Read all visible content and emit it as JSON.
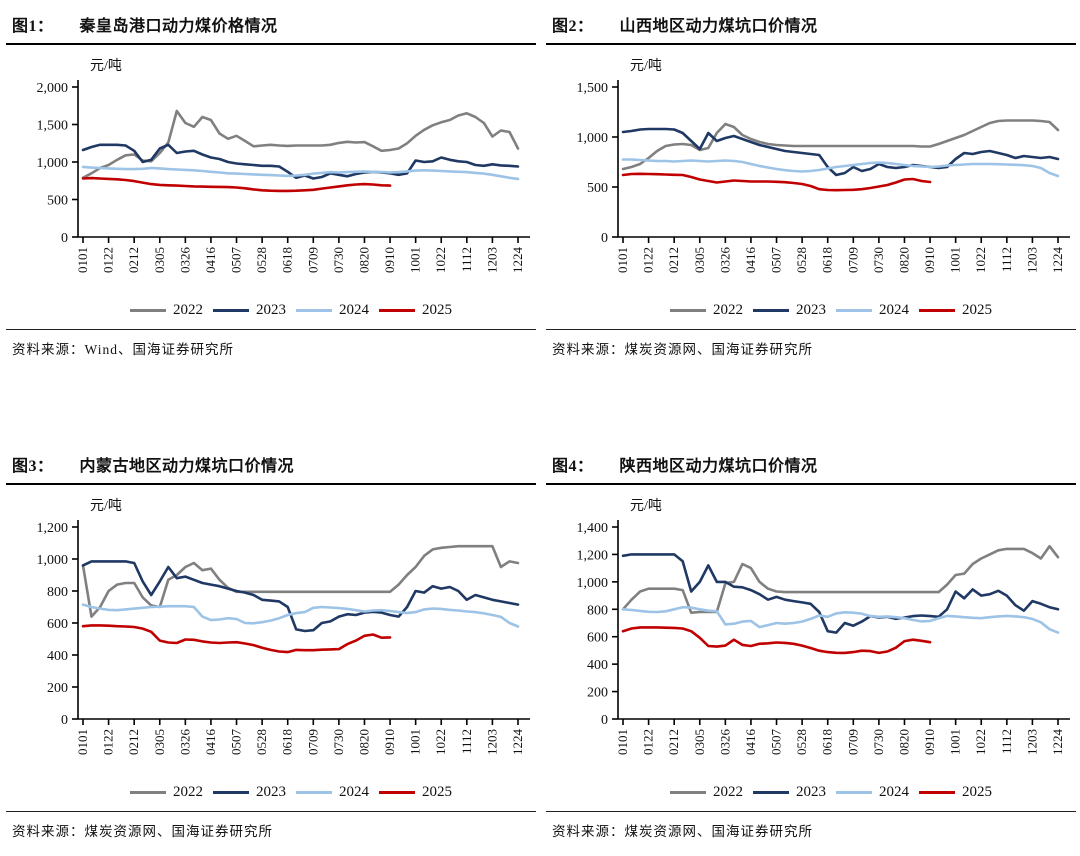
{
  "page": {
    "background": "#ffffff"
  },
  "chart_data": [
    {
      "id": "fig1",
      "type": "line",
      "title_prefix": "图1：",
      "title": "秦皇岛港口动力煤价格情况",
      "unit": "元/吨",
      "source": "资料来源：Wind、国海证券研究所",
      "legend_position": "bottom",
      "grid": false,
      "ylim": [
        0,
        2000
      ],
      "ystep": 500,
      "x_tick_labels": [
        "0101",
        "0122",
        "0212",
        "0305",
        "0326",
        "0416",
        "0507",
        "0528",
        "0618",
        "0709",
        "0730",
        "0820",
        "0910",
        "1001",
        "1022",
        "1112",
        "1203",
        "1224"
      ],
      "series": [
        {
          "name": "2022",
          "color": "#808080",
          "values": [
            790,
            850,
            920,
            960,
            1030,
            1090,
            1100,
            1020,
            1010,
            1120,
            1260,
            1680,
            1520,
            1470,
            1600,
            1560,
            1380,
            1310,
            1350,
            1280,
            1210,
            1220,
            1230,
            1220,
            1215,
            1220,
            1220,
            1220,
            1220,
            1230,
            1255,
            1270,
            1260,
            1265,
            1210,
            1150,
            1160,
            1180,
            1250,
            1350,
            1430,
            1490,
            1530,
            1560,
            1620,
            1650,
            1600,
            1520,
            1340,
            1420,
            1400,
            1180
          ]
        },
        {
          "name": "2023",
          "color": "#1f3864",
          "values": [
            1160,
            1200,
            1230,
            1230,
            1230,
            1220,
            1150,
            1000,
            1030,
            1180,
            1230,
            1120,
            1140,
            1150,
            1100,
            1060,
            1040,
            1000,
            980,
            970,
            960,
            950,
            950,
            940,
            870,
            790,
            820,
            780,
            800,
            850,
            830,
            810,
            840,
            860,
            870,
            860,
            850,
            830,
            850,
            1020,
            1000,
            1010,
            1060,
            1030,
            1010,
            1000,
            960,
            950,
            970,
            955,
            950,
            940
          ]
        },
        {
          "name": "2024",
          "color": "#9dc3e6",
          "values": [
            935,
            925,
            920,
            915,
            910,
            905,
            905,
            910,
            920,
            915,
            905,
            900,
            895,
            890,
            880,
            870,
            860,
            850,
            845,
            840,
            835,
            830,
            825,
            820,
            815,
            820,
            830,
            845,
            855,
            865,
            860,
            865,
            870,
            875,
            870,
            865,
            860,
            865,
            875,
            885,
            890,
            885,
            880,
            875,
            870,
            865,
            855,
            845,
            830,
            810,
            790,
            775
          ]
        },
        {
          "name": "2025",
          "color": "#c00000",
          "values": [
            780,
            785,
            780,
            775,
            770,
            760,
            745,
            725,
            705,
            695,
            690,
            685,
            680,
            675,
            672,
            670,
            668,
            665,
            660,
            650,
            635,
            622,
            617,
            615,
            615,
            618,
            622,
            630,
            645,
            660,
            675,
            690,
            700,
            705,
            700,
            690,
            685
          ]
        }
      ]
    },
    {
      "id": "fig2",
      "type": "line",
      "title_prefix": "图2：",
      "title": "山西地区动力煤坑口价情况",
      "unit": "元/吨",
      "source": "资料来源：煤炭资源网、国海证券研究所",
      "legend_position": "bottom",
      "grid": false,
      "ylim": [
        0,
        1500
      ],
      "ystep": 500,
      "x_tick_labels": [
        "0101",
        "0122",
        "0212",
        "0305",
        "0326",
        "0416",
        "0507",
        "0528",
        "0618",
        "0709",
        "0730",
        "0820",
        "0910",
        "1001",
        "1022",
        "1112",
        "1203",
        "1224"
      ],
      "series": [
        {
          "name": "2022",
          "color": "#808080",
          "values": [
            680,
            700,
            730,
            790,
            860,
            910,
            925,
            930,
            920,
            870,
            890,
            1040,
            1130,
            1100,
            1020,
            980,
            950,
            930,
            920,
            915,
            910,
            910,
            910,
            910,
            910,
            910,
            910,
            910,
            910,
            910,
            910,
            910,
            910,
            910,
            910,
            905,
            905,
            930,
            960,
            990,
            1020,
            1060,
            1100,
            1140,
            1160,
            1165,
            1165,
            1165,
            1165,
            1160,
            1150,
            1070
          ]
        },
        {
          "name": "2023",
          "color": "#1f3864",
          "values": [
            1050,
            1060,
            1075,
            1080,
            1080,
            1080,
            1075,
            1040,
            960,
            880,
            1040,
            960,
            990,
            1010,
            980,
            950,
            920,
            900,
            880,
            860,
            850,
            840,
            830,
            820,
            700,
            620,
            640,
            700,
            660,
            680,
            730,
            700,
            690,
            700,
            720,
            710,
            700,
            690,
            700,
            780,
            840,
            830,
            850,
            860,
            840,
            820,
            790,
            810,
            800,
            790,
            800,
            780
          ]
        },
        {
          "name": "2024",
          "color": "#9dc3e6",
          "values": [
            775,
            775,
            770,
            765,
            760,
            760,
            755,
            760,
            765,
            760,
            755,
            760,
            765,
            760,
            750,
            730,
            710,
            695,
            680,
            668,
            660,
            655,
            660,
            670,
            685,
            700,
            710,
            720,
            730,
            740,
            745,
            740,
            730,
            720,
            710,
            705,
            700,
            705,
            715,
            720,
            725,
            730,
            730,
            730,
            728,
            725,
            722,
            718,
            710,
            690,
            640,
            610
          ]
        },
        {
          "name": "2025",
          "color": "#c00000",
          "values": [
            620,
            630,
            632,
            630,
            628,
            625,
            622,
            620,
            600,
            575,
            560,
            545,
            555,
            565,
            560,
            555,
            555,
            555,
            552,
            548,
            540,
            530,
            510,
            478,
            470,
            468,
            470,
            472,
            478,
            490,
            505,
            520,
            545,
            575,
            580,
            560,
            550
          ]
        }
      ]
    },
    {
      "id": "fig3",
      "type": "line",
      "title_prefix": "图3：",
      "title": "内蒙古地区动力煤坑口价情况",
      "unit": "元/吨",
      "source": "资料来源：煤炭资源网、国海证券研究所",
      "legend_position": "bottom",
      "grid": false,
      "ylim": [
        0,
        1200
      ],
      "ystep": 200,
      "x_tick_labels": [
        "0101",
        "0122",
        "0212",
        "0305",
        "0326",
        "0416",
        "0507",
        "0528",
        "0618",
        "0709",
        "0730",
        "0820",
        "0910",
        "1001",
        "1022",
        "1112",
        "1203",
        "1224"
      ],
      "series": [
        {
          "name": "2022",
          "color": "#808080",
          "values": [
            960,
            640,
            700,
            800,
            840,
            850,
            850,
            760,
            710,
            700,
            870,
            900,
            950,
            975,
            930,
            940,
            870,
            820,
            795,
            795,
            795,
            795,
            795,
            795,
            795,
            795,
            795,
            795,
            795,
            795,
            795,
            795,
            795,
            795,
            795,
            795,
            795,
            840,
            900,
            950,
            1020,
            1060,
            1070,
            1075,
            1080,
            1080,
            1080,
            1080,
            1080,
            950,
            985,
            975
          ]
        },
        {
          "name": "2023",
          "color": "#1f3864",
          "values": [
            960,
            985,
            985,
            985,
            985,
            985,
            975,
            860,
            775,
            860,
            950,
            880,
            890,
            870,
            850,
            840,
            830,
            815,
            800,
            790,
            775,
            745,
            740,
            735,
            700,
            560,
            550,
            555,
            600,
            610,
            640,
            655,
            650,
            665,
            670,
            665,
            650,
            640,
            700,
            800,
            790,
            830,
            815,
            825,
            800,
            745,
            775,
            760,
            745,
            735,
            725,
            715
          ]
        },
        {
          "name": "2024",
          "color": "#9dc3e6",
          "values": [
            715,
            700,
            690,
            682,
            680,
            685,
            690,
            695,
            700,
            702,
            705,
            705,
            705,
            700,
            640,
            618,
            622,
            630,
            625,
            600,
            598,
            605,
            615,
            630,
            650,
            662,
            668,
            695,
            700,
            697,
            693,
            688,
            680,
            672,
            678,
            680,
            675,
            668,
            662,
            668,
            685,
            690,
            688,
            682,
            678,
            672,
            668,
            660,
            650,
            638,
            600,
            578
          ]
        },
        {
          "name": "2025",
          "color": "#c00000",
          "values": [
            580,
            585,
            585,
            583,
            580,
            578,
            575,
            565,
            545,
            490,
            478,
            475,
            497,
            495,
            485,
            478,
            475,
            478,
            480,
            472,
            462,
            445,
            432,
            422,
            418,
            432,
            430,
            430,
            433,
            435,
            437,
            468,
            490,
            520,
            528,
            508,
            510
          ]
        }
      ]
    },
    {
      "id": "fig4",
      "type": "line",
      "title_prefix": "图4：",
      "title": "陕西地区动力煤坑口价情况",
      "unit": "元/吨",
      "source": "资料来源：煤炭资源网、国海证券研究所",
      "legend_position": "bottom",
      "grid": false,
      "ylim": [
        0,
        1400
      ],
      "ystep": 200,
      "x_tick_labels": [
        "0101",
        "0122",
        "0212",
        "0305",
        "0326",
        "0416",
        "0507",
        "0528",
        "0618",
        "0709",
        "0730",
        "0820",
        "0910",
        "1001",
        "1022",
        "1112",
        "1203",
        "1224"
      ],
      "series": [
        {
          "name": "2022",
          "color": "#808080",
          "values": [
            800,
            870,
            930,
            950,
            950,
            950,
            950,
            940,
            775,
            780,
            780,
            780,
            990,
            1000,
            1130,
            1100,
            1000,
            950,
            930,
            925,
            925,
            925,
            925,
            925,
            925,
            925,
            925,
            925,
            925,
            925,
            925,
            925,
            925,
            925,
            925,
            925,
            925,
            925,
            980,
            1050,
            1060,
            1130,
            1170,
            1200,
            1230,
            1240,
            1240,
            1240,
            1210,
            1170,
            1260,
            1180
          ]
        },
        {
          "name": "2023",
          "color": "#1f3864",
          "values": [
            1190,
            1200,
            1200,
            1200,
            1200,
            1200,
            1200,
            1150,
            930,
            1000,
            1120,
            1000,
            1000,
            965,
            960,
            940,
            910,
            870,
            890,
            870,
            860,
            850,
            840,
            780,
            640,
            630,
            700,
            680,
            710,
            750,
            740,
            745,
            730,
            740,
            750,
            755,
            750,
            745,
            800,
            930,
            880,
            945,
            900,
            910,
            935,
            900,
            830,
            790,
            860,
            840,
            815,
            800
          ]
        },
        {
          "name": "2024",
          "color": "#9dc3e6",
          "values": [
            800,
            795,
            788,
            782,
            780,
            785,
            800,
            815,
            812,
            800,
            790,
            785,
            690,
            695,
            710,
            715,
            670,
            685,
            700,
            695,
            700,
            710,
            730,
            755,
            745,
            770,
            778,
            775,
            768,
            750,
            745,
            748,
            742,
            735,
            722,
            712,
            715,
            735,
            752,
            748,
            742,
            738,
            735,
            742,
            748,
            752,
            748,
            742,
            730,
            705,
            655,
            630
          ]
        },
        {
          "name": "2025",
          "color": "#c00000",
          "values": [
            640,
            660,
            668,
            668,
            668,
            666,
            664,
            660,
            640,
            592,
            532,
            528,
            535,
            578,
            540,
            532,
            548,
            552,
            558,
            555,
            548,
            535,
            518,
            498,
            488,
            483,
            482,
            488,
            498,
            495,
            482,
            492,
            520,
            568,
            578,
            570,
            560
          ]
        }
      ]
    }
  ]
}
